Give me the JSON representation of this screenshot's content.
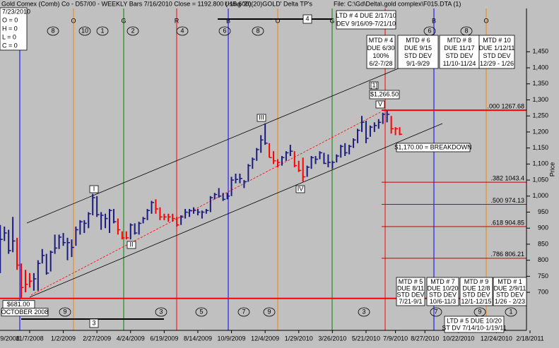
{
  "header": {
    "title": "Gold Comex (Comb) Co - D57/00  - WEEKLY Bars  7/16/2010 Close = 1192.800 (-15.600)",
    "using": "Using '20(20)GOLD' Delta TP's",
    "file": "File: C:\\Gd\\Delta\\.gold complex\\F015.DTA (1)"
  },
  "ohlc_box": [
    "7/23/2010",
    "O = 0",
    "H = 0",
    "L = 0",
    "C = 0"
  ],
  "chart_data": {
    "type": "ohlc",
    "y_label": "Price",
    "x": [
      "9/12/2008",
      "9/19/2008",
      "9/26/2008",
      "10/3/2008",
      "10/10/2008",
      "10/17/2008",
      "10/24/2008",
      "10/31/2008",
      "11/7/2008",
      "11/14/2008",
      "11/21/2008",
      "11/28/2008",
      "12/5/2008",
      "12/12/2008",
      "12/19/2008",
      "12/26/2008",
      "1/2/2009",
      "1/9/2009",
      "1/16/2009",
      "1/23/2009",
      "1/30/2009",
      "2/6/2009",
      "2/13/2009",
      "2/20/2009",
      "2/27/2009",
      "3/6/2009",
      "3/13/2009",
      "3/20/2009",
      "3/27/2009",
      "4/3/2009",
      "4/10/2009",
      "4/17/2009",
      "4/24/2009",
      "5/1/2009",
      "5/8/2009",
      "5/15/2009",
      "5/22/2009",
      "5/29/2009",
      "6/5/2009",
      "6/12/2009",
      "6/19/2009",
      "6/26/2009",
      "7/3/2009",
      "7/10/2009",
      "7/17/2009",
      "7/24/2009",
      "7/31/2009",
      "8/7/2009",
      "8/14/2009",
      "8/21/2009",
      "8/28/2009",
      "9/4/2009",
      "9/11/2009",
      "9/18/2009",
      "9/25/2009",
      "10/2/2009",
      "10/9/2009",
      "10/16/2009",
      "10/23/2009",
      "10/30/2009",
      "11/6/2009",
      "11/13/2009",
      "11/20/2009",
      "11/27/2009",
      "12/4/2009",
      "12/11/2009",
      "12/18/2009",
      "12/25/2009",
      "1/1/2010",
      "1/8/2010",
      "1/15/2010",
      "1/22/2010",
      "1/29/2010",
      "2/5/2010",
      "2/12/2010",
      "2/19/2010",
      "2/26/2010",
      "3/5/2010",
      "3/12/2010",
      "3/19/2010",
      "3/26/2010",
      "4/2/2010",
      "4/9/2010",
      "4/16/2010",
      "4/23/2010",
      "4/30/2010",
      "5/7/2010",
      "5/14/2010",
      "5/21/2010",
      "5/28/2010",
      "6/4/2010",
      "6/11/2010",
      "6/18/2010",
      "6/25/2010",
      "7/2/2010",
      "7/9/2010",
      "7/16/2010"
    ],
    "high": [
      775,
      910,
      905,
      895,
      935,
      870,
      790,
      770,
      760,
      760,
      800,
      835,
      820,
      830,
      880,
      880,
      885,
      870,
      865,
      905,
      925,
      925,
      950,
      1007,
      1000,
      950,
      945,
      960,
      960,
      930,
      890,
      890,
      915,
      915,
      920,
      935,
      960,
      985,
      990,
      965,
      945,
      945,
      945,
      935,
      940,
      960,
      960,
      965,
      960,
      955,
      960,
      1000,
      1010,
      1025,
      1010,
      1010,
      1060,
      1070,
      1070,
      1050,
      1100,
      1120,
      1150,
      1190,
      1227,
      1165,
      1140,
      1115,
      1125,
      1140,
      1160,
      1140,
      1110,
      1120,
      1095,
      1125,
      1125,
      1140,
      1135,
      1130,
      1110,
      1130,
      1160,
      1165,
      1160,
      1180,
      1210,
      1250,
      1235,
      1220,
      1230,
      1240,
      1260,
      1266.5,
      1250,
      1215,
      1215
    ],
    "low": [
      740,
      760,
      860,
      820,
      825,
      770,
      681,
      700,
      715,
      705,
      705,
      790,
      755,
      765,
      820,
      835,
      845,
      800,
      810,
      845,
      880,
      885,
      900,
      940,
      935,
      895,
      900,
      885,
      915,
      880,
      865,
      865,
      865,
      880,
      880,
      915,
      925,
      945,
      945,
      925,
      925,
      920,
      920,
      905,
      910,
      930,
      935,
      945,
      940,
      930,
      945,
      950,
      990,
      995,
      985,
      990,
      1000,
      1040,
      1040,
      1025,
      1045,
      1085,
      1110,
      1135,
      1160,
      1120,
      1100,
      1090,
      1095,
      1110,
      1125,
      1090,
      1075,
      1045,
      1060,
      1085,
      1100,
      1115,
      1100,
      1090,
      1085,
      1105,
      1120,
      1125,
      1130,
      1150,
      1165,
      1200,
      1165,
      1185,
      1200,
      1210,
      1225,
      1230,
      1195,
      1190,
      1190
    ],
    "close": [
      762,
      865,
      885,
      830,
      860,
      785,
      715,
      725,
      735,
      742,
      790,
      815,
      760,
      825,
      838,
      872,
      855,
      855,
      840,
      895,
      920,
      915,
      945,
      995,
      942,
      940,
      930,
      955,
      920,
      895,
      870,
      870,
      910,
      885,
      915,
      930,
      955,
      980,
      960,
      935,
      935,
      935,
      930,
      910,
      935,
      950,
      955,
      955,
      950,
      950,
      955,
      995,
      1005,
      1000,
      990,
      1000,
      1050,
      1052,
      1055,
      1045,
      1095,
      1115,
      1145,
      1175,
      1165,
      1120,
      1110,
      1105,
      1120,
      1135,
      1140,
      1095,
      1080,
      1060,
      1090,
      1120,
      1115,
      1135,
      1102,
      1105,
      1105,
      1125,
      1155,
      1135,
      1155,
      1175,
      1205,
      1230,
      1180,
      1215,
      1220,
      1230,
      1255,
      1255,
      1210,
      1210,
      1192.8
    ],
    "bar_colors": [
      "#1a1a80",
      "#1a1a80",
      "#1a1a80",
      "#1a1a80",
      "#1a1a80",
      "#ff0000",
      "#ff0000",
      "#ff0000",
      "#ff0000",
      "#1a1a80",
      "#1a1a80",
      "#1a1a80",
      "#1a1a80",
      "#1a1a80",
      "#1a1a80",
      "#1a1a80",
      "#1a1a80",
      "#1a1a80",
      "#1a1a80",
      "#1a1a80",
      "#1a1a80",
      "#1a1a80",
      "#1a1a80",
      "#1a1a80",
      "#1a1a80",
      "#1a1a80",
      "#1a1a80",
      "#1a1a80",
      "#1a1a80",
      "#ff0000",
      "#ff0000",
      "#ff0000",
      "#1a1a80",
      "#1a1a80",
      "#1a1a80",
      "#1a1a80",
      "#1a1a80",
      "#1a1a80",
      "#ff0000",
      "#ff0000",
      "#ff0000",
      "#ff0000",
      "#ff0000",
      "#ff0000",
      "#1a1a80",
      "#1a1a80",
      "#1a1a80",
      "#1a1a80",
      "#1a1a80",
      "#1a1a80",
      "#1a1a80",
      "#1a1a80",
      "#1a1a80",
      "#1a1a80",
      "#1a1a80",
      "#1a1a80",
      "#1a1a80",
      "#1a1a80",
      "#1a1a80",
      "#1a1a80",
      "#1a1a80",
      "#1a1a80",
      "#1a1a80",
      "#1a1a80",
      "#1a1a80",
      "#ff0000",
      "#ff0000",
      "#ff0000",
      "#1a1a80",
      "#1a1a80",
      "#1a1a80",
      "#ff0000",
      "#ff0000",
      "#ff0000",
      "#1a1a80",
      "#1a1a80",
      "#1a1a80",
      "#1a1a80",
      "#1a1a80",
      "#1a1a80",
      "#1a1a80",
      "#1a1a80",
      "#1a1a80",
      "#1a1a80",
      "#1a1a80",
      "#1a1a80",
      "#1a1a80",
      "#1a1a80",
      "#1a1a80",
      "#1a1a80",
      "#1a1a80",
      "#1a1a80",
      "#1a1a80",
      "#1a1a80",
      "#ff0000",
      "#ff0000",
      "#ff0000"
    ],
    "xlim": [
      "9/2008",
      "2/18/2011"
    ],
    "xticks": [
      "9/2008",
      "11/7/2008",
      "1/2/2009",
      "2/27/2009",
      "4/24/2009",
      "6/19/2009",
      "8/14/2009",
      "10/9/2009",
      "12/4/2009",
      "1/29/2010",
      "3/26/2010",
      "5/21/2010",
      "7/9/2010",
      "8/27/2010",
      "10/22/2010",
      "12/24/2010",
      "2/18/2011"
    ],
    "ylim": [
      588,
      1585
    ],
    "yticks": [
      700,
      750,
      800,
      850,
      900,
      950,
      {
        "value": 1000,
        "label": "1,000"
      },
      {
        "value": 1050,
        "label": "1,050"
      },
      {
        "value": 1100,
        "label": "1,100"
      },
      {
        "value": 1150,
        "label": "1,150"
      },
      {
        "value": 1200,
        "label": "1,200"
      },
      {
        "value": 1250,
        "label": "1,250"
      },
      {
        "value": 1300,
        "label": "1,300"
      },
      {
        "value": 1350,
        "label": "1,350"
      },
      {
        "value": 1400,
        "label": "1,400"
      },
      {
        "value": 1450,
        "label": "1,450"
      }
    ],
    "levels": [
      {
        "label": ".000  1267.68",
        "value": 1267.68,
        "color": "#ff0000"
      },
      {
        "label": ".382  1043.4",
        "value": 1043.4,
        "color": "#c00000"
      },
      {
        "label": ".500  974.13",
        "value": 974.13,
        "color": "#c00000"
      },
      {
        "label": ".618  904.85",
        "value": 904.85,
        "color": "#c00000"
      },
      {
        "label": ".786  806.21",
        "value": 806.21,
        "color": "#c00000"
      }
    ],
    "low_level": {
      "label": "$681.00",
      "value": 681,
      "color": "#ff0000",
      "note": "OCTOBER 2008"
    }
  },
  "cycle_lines": [
    {
      "label": "O",
      "color": "#ff8000"
    },
    {
      "label": "G",
      "color": "#008000"
    },
    {
      "label": "R",
      "color": "#ff0000"
    },
    {
      "label": "B",
      "color": "#0000ff"
    },
    {
      "label": "O",
      "color": "#ff8000"
    },
    {
      "label": "G",
      "color": "#008000"
    },
    {
      "label": "R",
      "color": "#ff0000"
    },
    {
      "label": "B",
      "color": "#0000ff"
    },
    {
      "label": "O",
      "color": "#ff8000"
    }
  ],
  "top_markers": [
    "8",
    "10",
    "1",
    "2",
    "4",
    "6",
    "8",
    "6",
    "8"
  ],
  "bottom_markers": [
    "9",
    "3",
    "5",
    "7",
    "9",
    "3",
    "7",
    "9",
    "1"
  ],
  "brackets": [
    "4",
    "3",
    "5"
  ],
  "wave_labels": [
    "I",
    "II",
    "III",
    "IV",
    "V",
    "[1]"
  ],
  "price_notes": [
    "$1,266.50",
    "$1,170.00 = BREAKDOWN"
  ],
  "boxes": [
    [
      "LTD # 4 DUE 2/17/10",
      "DEV 9/16/09-7/21/10"
    ],
    [
      "MTD # 4",
      "DUE 6/30",
      "100%",
      "6/2-7/28"
    ],
    [
      "MTD # 6",
      "DUE 9/15",
      "STD DEV",
      "9/1-9/29"
    ],
    [
      "MTD # 8",
      "DUE 11/17",
      "STD DEV",
      "11/10-11/24"
    ],
    [
      "MTD # 10",
      "DUE 1/12/11",
      "STD DEV",
      "12/29 - 1/26"
    ],
    [
      "MTD # 5",
      "DUE 8/11",
      "STD DEV",
      "7/21-9/1"
    ],
    [
      "MTD # 7",
      "DUE 10/20",
      "STD DEV",
      "10/6-11/3"
    ],
    [
      "MTD # 9",
      "DUE 12/8",
      "STD DEV",
      "12/1-12/15"
    ],
    [
      "MTD # 1",
      "DUE 2/9/11",
      "STD DEV",
      "1/26 - 2/23"
    ],
    [
      "LTD # 5 DUE 10/20",
      "ST DV 7/14/10-1/19/11"
    ]
  ]
}
